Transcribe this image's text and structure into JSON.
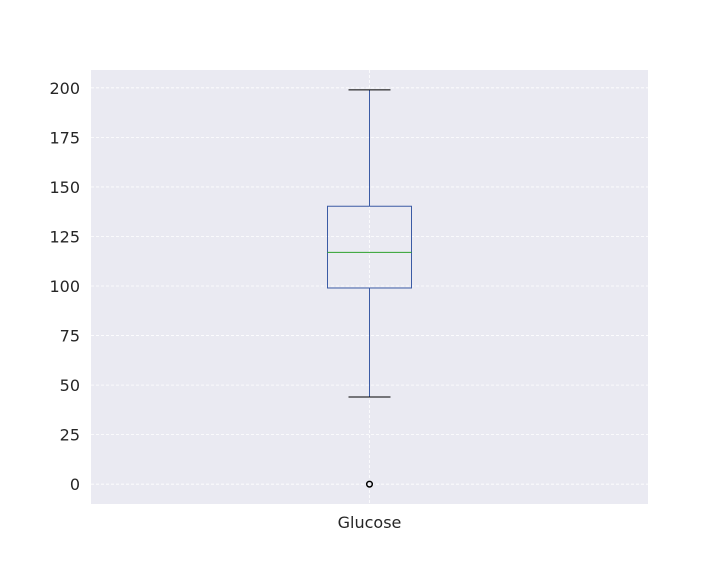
{
  "chart_data": {
    "type": "box",
    "categories": [
      "Glucose"
    ],
    "series": [
      {
        "box": {
          "whisker_low": 44,
          "q1": 99,
          "median": 117,
          "q3": 140.25,
          "whisker_high": 199
        },
        "outliers": [
          0
        ]
      }
    ],
    "title": "",
    "xlabel": "",
    "ylabel": "",
    "ylim": [
      -10,
      209
    ],
    "yticks": [
      0,
      25,
      50,
      75,
      100,
      125,
      150,
      175,
      200
    ],
    "grid": true,
    "colors": {
      "background": "#eaeaf2",
      "grid": "#ffffff",
      "box": "#3b5ba5",
      "median": "#2ca02c",
      "whisker_cap": "#000000",
      "outlier": "#000000"
    }
  }
}
